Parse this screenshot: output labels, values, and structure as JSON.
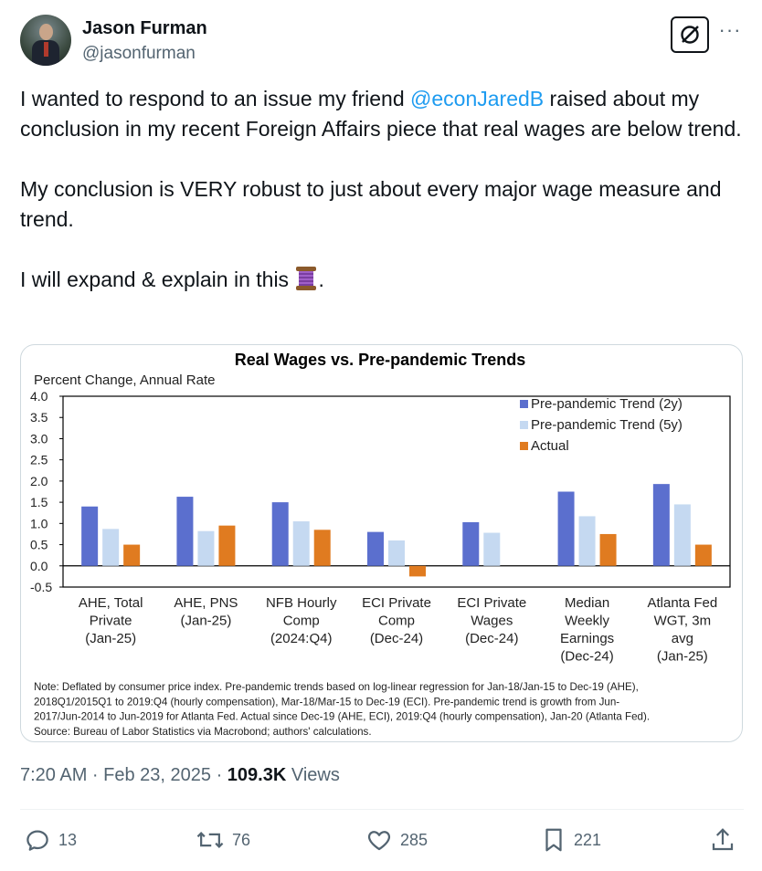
{
  "author": {
    "name": "Jason Furman",
    "handle": "@jasonfurman"
  },
  "tweet": {
    "line1_pre": "I wanted to respond to an issue my friend ",
    "mention": "@econJaredB",
    "line1_post": " raised about my conclusion in my recent Foreign Affairs piece that real wages are below trend.",
    "para2": "My conclusion is VERY robust to just about every major wage measure and trend.",
    "para3_pre": "I will expand & explain in this ",
    "para3_post": ".",
    "thread_icon": "spool-of-thread-emoji"
  },
  "meta": {
    "time": "7:20 AM · Feb 23, 2025 · ",
    "views_count": "109.3K",
    "views_label": " Views"
  },
  "actions": {
    "replies": "13",
    "reposts": "76",
    "likes": "285",
    "bookmarks": "221"
  },
  "chart_data": {
    "type": "bar",
    "title": "Real Wages vs. Pre-pandemic Trends",
    "ylabel": "Percent Change, Annual Rate",
    "ylim": [
      -0.5,
      4.0
    ],
    "yticks": [
      "4.0",
      "3.5",
      "3.0",
      "2.5",
      "2.0",
      "1.5",
      "1.0",
      "0.5",
      "0.0",
      "-0.5"
    ],
    "categories": [
      [
        "AHE, Total",
        "Private",
        "(Jan-25)"
      ],
      [
        "AHE, PNS",
        "(Jan-25)"
      ],
      [
        "NFB Hourly",
        "Comp",
        "(2024:Q4)"
      ],
      [
        "ECI Private",
        "Comp",
        "(Dec-24)"
      ],
      [
        "ECI Private",
        "Wages",
        "(Dec-24)"
      ],
      [
        "Median",
        "Weekly",
        "Earnings",
        "(Dec-24)"
      ],
      [
        "Atlanta Fed",
        "WGT, 3m",
        "avg",
        "(Jan-25)"
      ]
    ],
    "series": [
      {
        "name": "Pre-pandemic Trend (2y)",
        "color": "#5b6fce",
        "values": [
          1.4,
          1.63,
          1.5,
          0.8,
          1.03,
          1.75,
          1.93
        ]
      },
      {
        "name": "Pre-pandemic Trend (5y)",
        "color": "#c5d9f1",
        "values": [
          0.87,
          0.82,
          1.05,
          0.6,
          0.78,
          1.17,
          1.45
        ]
      },
      {
        "name": "Actual",
        "color": "#e07b20",
        "values": [
          0.5,
          0.95,
          0.85,
          -0.25,
          null,
          0.75,
          0.5
        ]
      }
    ],
    "legend": "top-right",
    "note": [
      "Note: Deflated by consumer price index. Pre-pandemic trends based on log-linear regression for Jan-18/Jan-15 to Dec-19 (AHE),",
      "2018Q1/2015Q1 to 2019:Q4 (hourly compensation), Mar-18/Mar-15 to Dec-19 (ECI). Pre-pandemic trend is growth from Jun-",
      "2017/Jun-2014 to Jun-2019 for Atlanta Fed. Actual since Dec-19 (AHE, ECI), 2019:Q4 (hourly compensation), Jan-20 (Atlanta Fed).",
      "Source: Bureau of Labor Statistics via Macrobond; authors' calculations."
    ]
  }
}
